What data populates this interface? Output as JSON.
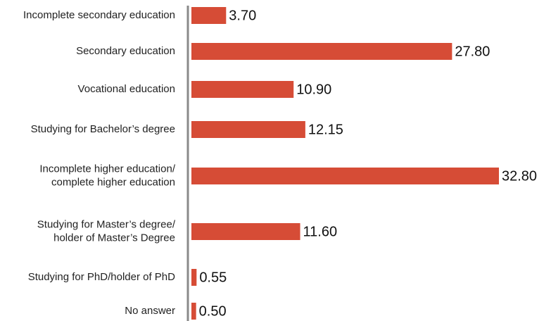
{
  "chart_data": {
    "type": "bar",
    "orientation": "horizontal",
    "categories": [
      [
        "Incomplete secondary education"
      ],
      [
        "Secondary education"
      ],
      [
        "Vocational education"
      ],
      [
        "Studying for Bachelor’s degree"
      ],
      [
        "Incomplete higher education/",
        "complete higher education"
      ],
      [
        "Studying for Master’s degree/",
        "holder of Master’s Degree"
      ],
      [
        "Studying for PhD/holder of PhD"
      ],
      [
        "No answer"
      ]
    ],
    "values": [
      3.7,
      27.8,
      10.9,
      12.15,
      32.8,
      11.6,
      0.55,
      0.5
    ],
    "value_labels": [
      "3.70",
      "27.80",
      "10.90",
      "12.15",
      "32.80",
      "11.60",
      "0.55",
      "0.50"
    ],
    "xlim": [
      0,
      32.8
    ],
    "grid": false,
    "colors": {
      "bar": "#d64c36",
      "axis": "#8a8a8a"
    }
  }
}
